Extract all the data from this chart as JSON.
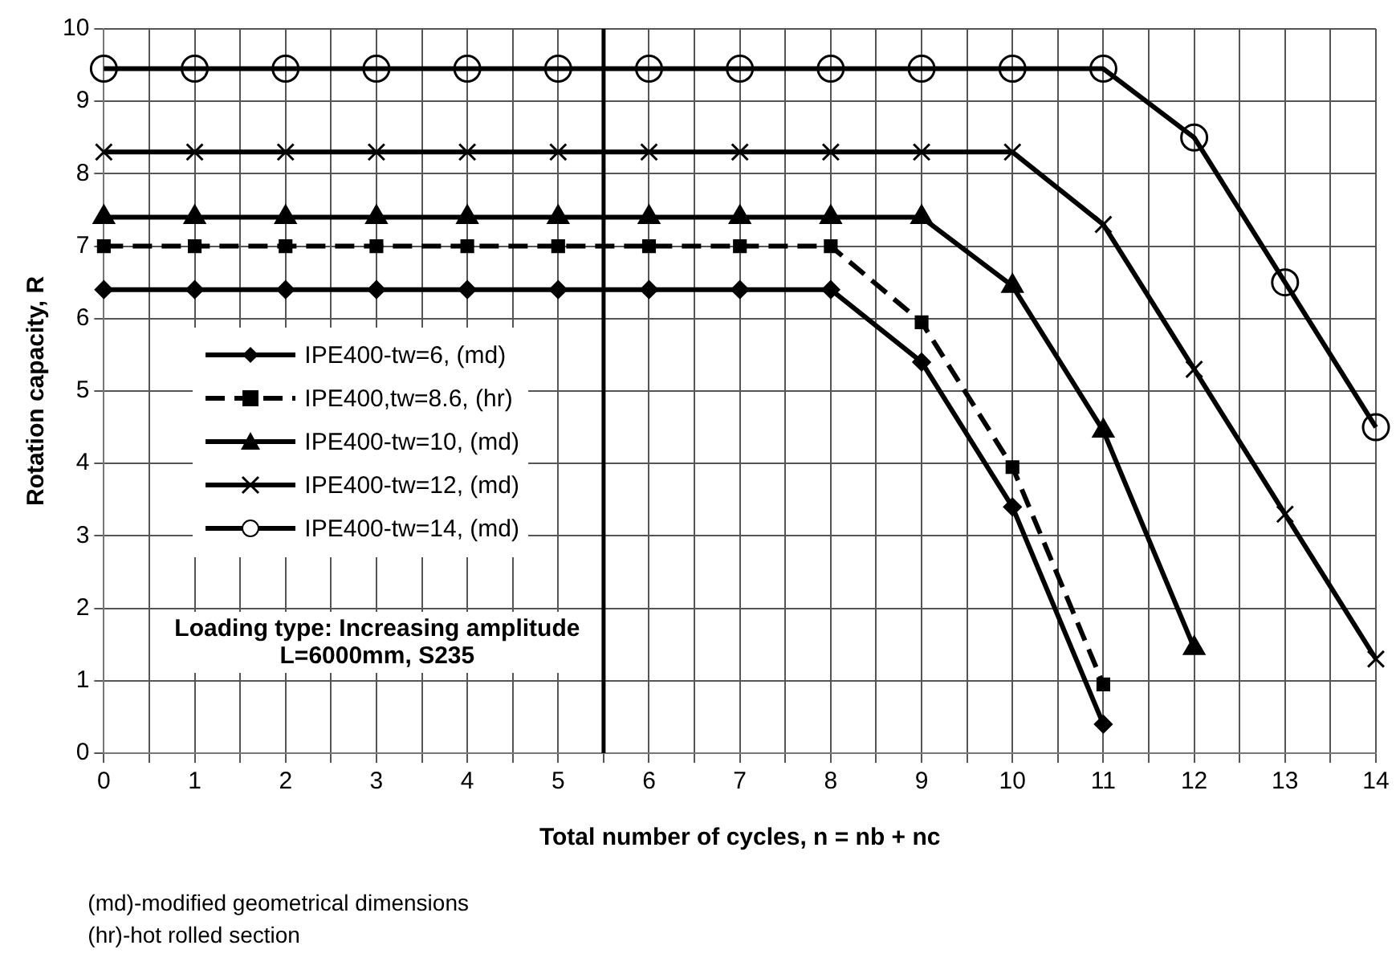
{
  "chart_data": {
    "type": "line",
    "xlabel": "Total number of cycles, n = nb + nc",
    "ylabel": "Rotation capacity, R",
    "xlim": [
      0,
      14
    ],
    "ylim": [
      0,
      10
    ],
    "xticks": [
      0,
      {
        "value": 0.5,
        "label": null
      },
      1,
      {
        "value": 1.5,
        "label": null
      },
      2,
      {
        "value": 2.5,
        "label": null
      },
      3,
      {
        "value": 3.5,
        "label": null
      },
      4,
      {
        "value": 4.5,
        "label": null
      },
      5,
      {
        "value": 5.5,
        "label": null
      },
      6,
      {
        "value": 6.5,
        "label": null
      },
      7,
      {
        "value": 7.5,
        "label": null
      },
      8,
      {
        "value": 8.5,
        "label": null
      },
      9,
      {
        "value": 9.5,
        "label": null
      },
      10,
      {
        "value": 10.5,
        "label": null
      },
      11,
      {
        "value": 11.5,
        "label": null
      },
      12,
      {
        "value": 12.5,
        "label": null
      },
      13,
      {
        "value": 13.5,
        "label": null
      },
      14
    ],
    "yticks": [
      0,
      1,
      2,
      3,
      4,
      5,
      6,
      7,
      8,
      9,
      10
    ],
    "grid": true,
    "legend": "left",
    "ref_lines": [
      {
        "axis": "x",
        "value": 5.5,
        "color": "#000000"
      }
    ],
    "series": [
      {
        "name": "IPE400-tw=6, (md)",
        "color": "#000000",
        "marker": "diamond",
        "line_style": "solid",
        "x": [
          0,
          1,
          2,
          3,
          4,
          5,
          6,
          7,
          8,
          9,
          10,
          11
        ],
        "values": [
          6.4,
          6.4,
          6.4,
          6.4,
          6.4,
          6.4,
          6.4,
          6.4,
          6.4,
          5.4,
          3.4,
          0.4
        ]
      },
      {
        "name": "IPE400,tw=8.6, (hr)",
        "color": "#000000",
        "marker": "square",
        "line_style": "dashed",
        "x": [
          0,
          1,
          2,
          3,
          4,
          5,
          6,
          7,
          8,
          9,
          10,
          11
        ],
        "values": [
          7,
          7,
          7,
          7,
          7,
          7,
          7,
          7,
          7,
          5.95,
          3.95,
          0.95
        ]
      },
      {
        "name": "IPE400-tw=10, (md)",
        "color": "#000000",
        "marker": "triangle",
        "line_style": "solid",
        "x": [
          0,
          1,
          2,
          3,
          4,
          5,
          6,
          7,
          8,
          9,
          10,
          11,
          12
        ],
        "values": [
          7.4,
          7.4,
          7.4,
          7.4,
          7.4,
          7.4,
          7.4,
          7.4,
          7.4,
          7.4,
          6.45,
          4.45,
          1.45
        ]
      },
      {
        "name": "IPE400-tw=12, (md)",
        "color": "#000000",
        "marker": "cross",
        "line_style": "solid",
        "x": [
          0,
          1,
          2,
          3,
          4,
          5,
          6,
          7,
          8,
          9,
          10,
          11,
          12,
          13,
          14
        ],
        "values": [
          8.3,
          8.3,
          8.3,
          8.3,
          8.3,
          8.3,
          8.3,
          8.3,
          8.3,
          8.3,
          8.3,
          7.3,
          5.3,
          3.3,
          1.3
        ]
      },
      {
        "name": "IPE400-tw=14, (md)",
        "color": "#000000",
        "marker": "circle",
        "line_style": "solid",
        "x": [
          0,
          1,
          2,
          3,
          4,
          5,
          6,
          7,
          8,
          9,
          10,
          11,
          12,
          13,
          14
        ],
        "values": [
          9.45,
          9.45,
          9.45,
          9.45,
          9.45,
          9.45,
          9.45,
          9.45,
          9.45,
          9.45,
          9.45,
          9.45,
          8.5,
          6.5,
          4.5
        ]
      }
    ],
    "annotations": [
      "Loading type: Increasing amplitude",
      "L=6000mm, S235",
      "(md)-modified geometrical dimensions",
      "(hr)-hot rolled section"
    ]
  }
}
